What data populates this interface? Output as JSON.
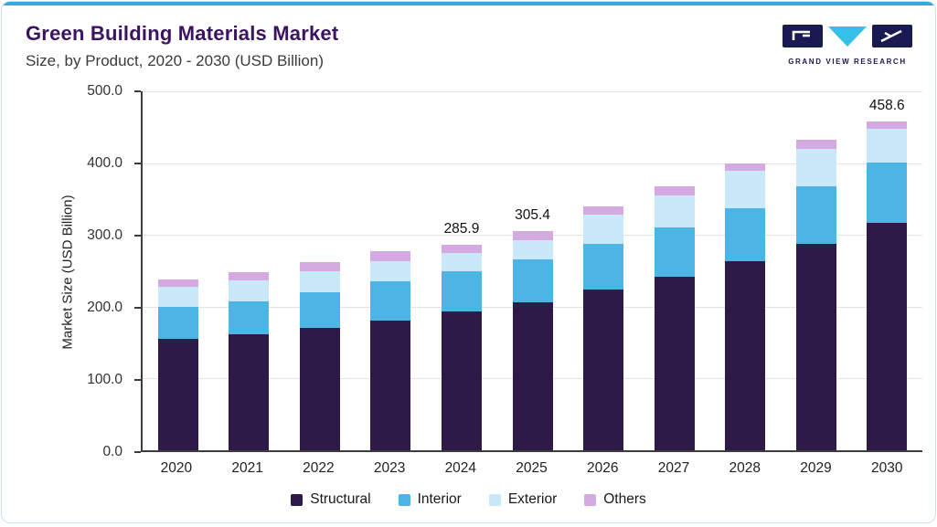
{
  "header": {
    "title": "Green Building Materials Market",
    "subtitle": "Size, by Product, 2020 - 2030 (USD Billion)"
  },
  "logo": {
    "text": "GRAND VIEW RESEARCH",
    "navy": "#1a1a52",
    "cyan": "#35c0e8"
  },
  "chart_data": {
    "type": "bar",
    "stacked": true,
    "title": "Green Building Materials Market Size, by Product, 2020 - 2030 (USD Billion)",
    "categories": [
      "2020",
      "2021",
      "2022",
      "2023",
      "2024",
      "2025",
      "2026",
      "2027",
      "2028",
      "2029",
      "2030"
    ],
    "series": [
      {
        "name": "Structural",
        "color": "#2e1a47",
        "values": [
          155,
          161,
          170,
          181,
          193,
          206,
          224,
          242,
          264,
          288,
          317
        ]
      },
      {
        "name": "Interior",
        "color": "#4db5e6",
        "values": [
          45,
          47,
          50,
          54,
          57,
          60,
          64,
          69,
          73,
          80,
          84
        ]
      },
      {
        "name": "Exterior",
        "color": "#c9e9f8",
        "values": [
          28,
          29,
          29,
          29,
          25,
          27,
          40,
          44,
          52,
          52,
          47
        ]
      },
      {
        "name": "Others",
        "color": "#d5a9e2",
        "values": [
          10,
          11,
          13,
          13,
          10.9,
          12.4,
          12,
          13,
          11,
          13,
          10.6
        ]
      }
    ],
    "totals_estimated": [
      238,
      248,
      262,
      277,
      285.9,
      305.4,
      340,
      368,
      400,
      433,
      458.6
    ],
    "total_labels": [
      "",
      "",
      "",
      "",
      "285.9",
      "305.4",
      "",
      "",
      "",
      "",
      "458.6"
    ],
    "ylabel": "Market Size (USD Billion)",
    "yticks": [
      "500.0",
      "400.0",
      "300.0",
      "200.0",
      "100.0",
      "0.0"
    ],
    "ylim": [
      0,
      500
    ],
    "grid": true,
    "legend_position": "bottom",
    "legend": [
      "Structural",
      "Interior",
      "Exterior",
      "Others"
    ]
  }
}
